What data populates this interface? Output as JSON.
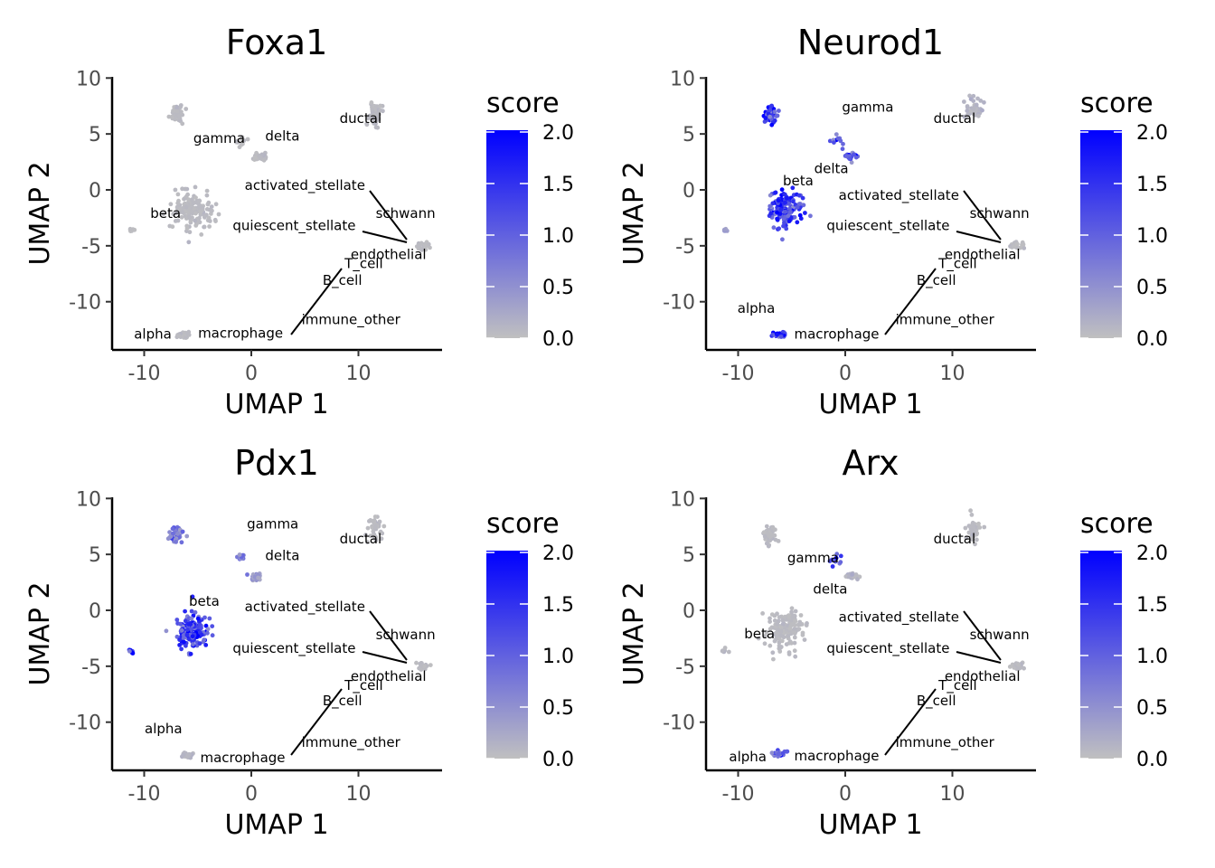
{
  "chart_data": [
    {
      "type": "scatter",
      "title": "Foxa1",
      "xlabel": "UMAP 1",
      "ylabel": "UMAP 2",
      "xlim": [
        -13,
        18
      ],
      "ylim": [
        -14.2,
        10.3
      ],
      "x_ticks": [
        -10,
        0,
        10
      ],
      "x_tick_labels": [
        "-10",
        "0",
        "10"
      ],
      "y_ticks": [
        10,
        5,
        0,
        -5,
        -10
      ],
      "y_tick_labels": [
        "10",
        "5",
        "0",
        "-5",
        "-10"
      ],
      "legend": {
        "title": "score",
        "min": 0,
        "max": 2,
        "ticks": [
          "2.0",
          "1.5",
          "1.0",
          "0.5",
          "0.0"
        ],
        "low_color": "#c0c0c0",
        "high_color": "#0000ff",
        "placement": "right"
      },
      "clusters": [
        {
          "name": "ductal",
          "x": 11.5,
          "y": 6.8,
          "sx": 0.6,
          "sy": 0.9,
          "n": 40,
          "score": 0.05
        },
        {
          "name": "gamma",
          "x": -1,
          "y": 4.3,
          "sx": 0.5,
          "sy": 0.5,
          "n": 10,
          "score": 0.05
        },
        {
          "name": "delta",
          "x": 0.8,
          "y": 2.9,
          "sx": 0.6,
          "sy": 0.3,
          "n": 25,
          "score": 0.05
        },
        {
          "name": "beta",
          "x": -5.5,
          "y": -1.8,
          "sx": 1.6,
          "sy": 1.4,
          "n": 150,
          "score": 0.05
        },
        {
          "name": "alpha",
          "x": -6.3,
          "y": -13,
          "sx": 0.6,
          "sy": 0.2,
          "n": 30,
          "score": 0.05
        },
        {
          "name": "",
          "x": -7,
          "y": 6.7,
          "sx": 0.5,
          "sy": 0.6,
          "n": 60,
          "score": 0.05
        },
        {
          "name": "",
          "x": -11.2,
          "y": -3.6,
          "sx": 0.2,
          "sy": 0.2,
          "n": 6,
          "score": 0.05
        },
        {
          "name": "schwann",
          "x": 16,
          "y": -5,
          "sx": 0.5,
          "sy": 0.3,
          "n": 20,
          "score": 0.05
        }
      ],
      "labels": [
        {
          "text": "ductal",
          "x": 10.2,
          "y": 6
        },
        {
          "text": "gamma",
          "x": -3,
          "y": 4.2
        },
        {
          "text": "delta",
          "x": 2.9,
          "y": 4.4
        },
        {
          "text": "activated_stellate",
          "x": 5,
          "y": 0
        },
        {
          "text": "beta",
          "x": -8,
          "y": -2.5
        },
        {
          "text": "schwann",
          "x": 14.4,
          "y": -2.5
        },
        {
          "text": "quiescent_stellate",
          "x": 4,
          "y": -3.6
        },
        {
          "text": "endothelial",
          "x": 12.8,
          "y": -6.2
        },
        {
          "text": "T_cell",
          "x": 10.5,
          "y": -7
        },
        {
          "text": "B_cell",
          "x": 8.5,
          "y": -8.5
        },
        {
          "text": "immune_other",
          "x": 9.3,
          "y": -12
        },
        {
          "text": "alpha",
          "x": -9.2,
          "y": -13.3
        },
        {
          "text": "macrophage",
          "x": -1,
          "y": -13.2
        }
      ]
    },
    {
      "type": "scatter",
      "title": "Neurod1",
      "xlabel": "UMAP 1",
      "ylabel": "UMAP 2",
      "xlim": [
        -13,
        18
      ],
      "ylim": [
        -14.2,
        10.3
      ],
      "x_ticks": [
        -10,
        0,
        10
      ],
      "x_tick_labels": [
        "-10",
        "0",
        "10"
      ],
      "y_ticks": [
        10,
        5,
        0,
        -5,
        -10
      ],
      "y_tick_labels": [
        "10",
        "5",
        "0",
        "-5",
        "-10"
      ],
      "legend": {
        "title": "score",
        "min": 0,
        "max": 2,
        "ticks": [
          "2.0",
          "1.5",
          "1.0",
          "0.5",
          "0.0"
        ],
        "low_color": "#c0c0c0",
        "high_color": "#0000ff",
        "placement": "right"
      },
      "clusters": [
        {
          "name": "ductal",
          "x": 12,
          "y": 7.3,
          "sx": 0.6,
          "sy": 0.9,
          "n": 40,
          "score": 0.1
        },
        {
          "name": "gamma",
          "x": -0.8,
          "y": 4.5,
          "sx": 0.5,
          "sy": 0.5,
          "n": 10,
          "score": 1.0
        },
        {
          "name": "delta",
          "x": 0.5,
          "y": 3,
          "sx": 0.5,
          "sy": 0.3,
          "n": 25,
          "score": 1.0
        },
        {
          "name": "beta",
          "x": -5.5,
          "y": -1.8,
          "sx": 1.3,
          "sy": 1.4,
          "n": 150,
          "score": 1.2
        },
        {
          "name": "alpha",
          "x": -6.2,
          "y": -13,
          "sx": 0.5,
          "sy": 0.2,
          "n": 30,
          "score": 1.4
        },
        {
          "name": "",
          "x": -7,
          "y": 6.7,
          "sx": 0.5,
          "sy": 0.6,
          "n": 60,
          "score": 1.4
        },
        {
          "name": "",
          "x": -11.2,
          "y": -3.6,
          "sx": 0.2,
          "sy": 0.2,
          "n": 6,
          "score": 0.3
        },
        {
          "name": "schwann",
          "x": 16,
          "y": -5,
          "sx": 0.5,
          "sy": 0.3,
          "n": 20,
          "score": 0.05
        }
      ],
      "labels": [
        {
          "text": "gamma",
          "x": 2.1,
          "y": 7
        },
        {
          "text": "ductal",
          "x": 10.2,
          "y": 6
        },
        {
          "text": "delta",
          "x": -1.3,
          "y": 1.5
        },
        {
          "text": "beta",
          "x": -4.4,
          "y": 0.4
        },
        {
          "text": "activated_stellate",
          "x": 5,
          "y": -0.9
        },
        {
          "text": "schwann",
          "x": 14.4,
          "y": -2.5
        },
        {
          "text": "quiescent_stellate",
          "x": 4,
          "y": -3.6
        },
        {
          "text": "endothelial",
          "x": 12.8,
          "y": -6.2
        },
        {
          "text": "T_cell",
          "x": 10.5,
          "y": -7
        },
        {
          "text": "B_cell",
          "x": 8.5,
          "y": -8.5
        },
        {
          "text": "alpha",
          "x": -8.3,
          "y": -11
        },
        {
          "text": "immune_other",
          "x": 9.3,
          "y": -12
        },
        {
          "text": "macrophage",
          "x": -0.8,
          "y": -13.3
        }
      ]
    },
    {
      "type": "scatter",
      "title": "Pdx1",
      "xlabel": "UMAP 1",
      "ylabel": "UMAP 2",
      "xlim": [
        -13,
        18
      ],
      "ylim": [
        -14.2,
        10.3
      ],
      "x_ticks": [
        -10,
        0,
        10
      ],
      "x_tick_labels": [
        "-10",
        "0",
        "10"
      ],
      "y_ticks": [
        10,
        5,
        0,
        -5,
        -10
      ],
      "y_tick_labels": [
        "10",
        "5",
        "0",
        "-5",
        "-10"
      ],
      "legend": {
        "title": "score",
        "min": 0,
        "max": 2,
        "ticks": [
          "2.0",
          "1.5",
          "1.0",
          "0.5",
          "0.0"
        ],
        "low_color": "#c0c0c0",
        "high_color": "#0000ff",
        "placement": "right"
      },
      "clusters": [
        {
          "name": "ductal",
          "x": 11.5,
          "y": 7.3,
          "sx": 0.6,
          "sy": 0.9,
          "n": 40,
          "score": 0.05
        },
        {
          "name": "gamma",
          "x": -1,
          "y": 4.8,
          "sx": 0.4,
          "sy": 0.3,
          "n": 10,
          "score": 0.6
        },
        {
          "name": "delta",
          "x": 0.5,
          "y": 3,
          "sx": 0.5,
          "sy": 0.3,
          "n": 25,
          "score": 0.4
        },
        {
          "name": "beta",
          "x": -5.5,
          "y": -1.8,
          "sx": 1.3,
          "sy": 1.4,
          "n": 150,
          "score": 1.2
        },
        {
          "name": "alpha",
          "x": -6,
          "y": -13,
          "sx": 0.5,
          "sy": 0.2,
          "n": 30,
          "score": 0.1
        },
        {
          "name": "",
          "x": -7,
          "y": 6.7,
          "sx": 0.5,
          "sy": 0.6,
          "n": 60,
          "score": 0.6
        },
        {
          "name": "",
          "x": -11.2,
          "y": -3.6,
          "sx": 0.2,
          "sy": 0.2,
          "n": 6,
          "score": 1.5
        },
        {
          "name": "schwann",
          "x": 16,
          "y": -5,
          "sx": 0.5,
          "sy": 0.3,
          "n": 20,
          "score": 0.05
        }
      ],
      "labels": [
        {
          "text": "gamma",
          "x": 2,
          "y": 7.3
        },
        {
          "text": "ductal",
          "x": 10.2,
          "y": 6
        },
        {
          "text": "delta",
          "x": 2.9,
          "y": 4.5
        },
        {
          "text": "beta",
          "x": -4.4,
          "y": 0.4
        },
        {
          "text": "activated_stellate",
          "x": 5,
          "y": -0.1
        },
        {
          "text": "schwann",
          "x": 14.4,
          "y": -2.6
        },
        {
          "text": "quiescent_stellate",
          "x": 4,
          "y": -3.8
        },
        {
          "text": "endothelial",
          "x": 12.8,
          "y": -6.3
        },
        {
          "text": "T_cell",
          "x": 10.5,
          "y": -7.1
        },
        {
          "text": "B_cell",
          "x": 8.5,
          "y": -8.5
        },
        {
          "text": "alpha",
          "x": -8.2,
          "y": -11
        },
        {
          "text": "immune_other",
          "x": 9.3,
          "y": -12.2
        },
        {
          "text": "macrophage",
          "x": -0.8,
          "y": -13.6
        }
      ]
    },
    {
      "type": "scatter",
      "title": "Arx",
      "xlabel": "UMAP 1",
      "ylabel": "UMAP 2",
      "xlim": [
        -13,
        18
      ],
      "ylim": [
        -14.2,
        10.3
      ],
      "x_ticks": [
        -10,
        0,
        10
      ],
      "x_tick_labels": [
        "-10",
        "0",
        "10"
      ],
      "y_ticks": [
        10,
        5,
        0,
        -5,
        -10
      ],
      "y_tick_labels": [
        "10",
        "5",
        "0",
        "-5",
        "-10"
      ],
      "legend": {
        "title": "score",
        "min": 0,
        "max": 2,
        "ticks": [
          "2.0",
          "1.5",
          "1.0",
          "0.5",
          "0.0"
        ],
        "low_color": "#c0c0c0",
        "high_color": "#0000ff",
        "placement": "right"
      },
      "clusters": [
        {
          "name": "ductal",
          "x": 12,
          "y": 7.3,
          "sx": 0.6,
          "sy": 0.9,
          "n": 40,
          "score": 0.05
        },
        {
          "name": "gamma",
          "x": -1,
          "y": 4.8,
          "sx": 0.6,
          "sy": 0.5,
          "n": 10,
          "score": 1.0
        },
        {
          "name": "delta",
          "x": 0.5,
          "y": 3,
          "sx": 0.6,
          "sy": 0.3,
          "n": 25,
          "score": 0.1
        },
        {
          "name": "beta",
          "x": -5.5,
          "y": -1.8,
          "sx": 1.4,
          "sy": 1.4,
          "n": 150,
          "score": 0.05
        },
        {
          "name": "alpha",
          "x": -6.2,
          "y": -12.8,
          "sx": 0.6,
          "sy": 0.2,
          "n": 30,
          "score": 0.8
        },
        {
          "name": "",
          "x": -7,
          "y": 6.7,
          "sx": 0.5,
          "sy": 0.6,
          "n": 60,
          "score": 0.05
        },
        {
          "name": "",
          "x": -11.2,
          "y": -3.6,
          "sx": 0.2,
          "sy": 0.2,
          "n": 6,
          "score": 0.05
        },
        {
          "name": "schwann",
          "x": 16,
          "y": -5,
          "sx": 0.5,
          "sy": 0.3,
          "n": 20,
          "score": 0.05
        }
      ],
      "labels": [
        {
          "text": "ductal",
          "x": 10.2,
          "y": 6
        },
        {
          "text": "gamma",
          "x": -3,
          "y": 4.3
        },
        {
          "text": "delta",
          "x": -1.4,
          "y": 1.5
        },
        {
          "text": "activated_stellate",
          "x": 5,
          "y": -1
        },
        {
          "text": "beta",
          "x": -8,
          "y": -2.5
        },
        {
          "text": "schwann",
          "x": 14.4,
          "y": -2.6
        },
        {
          "text": "quiescent_stellate",
          "x": 4,
          "y": -3.8
        },
        {
          "text": "endothelial",
          "x": 12.8,
          "y": -6.3
        },
        {
          "text": "T_cell",
          "x": 10.5,
          "y": -7.1
        },
        {
          "text": "B_cell",
          "x": 8.5,
          "y": -8.5
        },
        {
          "text": "immune_other",
          "x": 9.3,
          "y": -12.2
        },
        {
          "text": "alpha",
          "x": -9.1,
          "y": -13.5
        },
        {
          "text": "macrophage",
          "x": -0.8,
          "y": -13.4
        }
      ]
    }
  ]
}
